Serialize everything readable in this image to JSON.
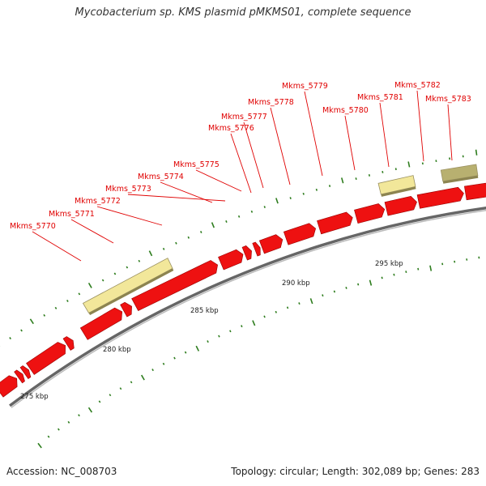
{
  "title": "Mycobacterium sp. KMS plasmid pMKMS01, complete sequence",
  "footer": {
    "accession": "Accession: NC_008703",
    "summary": "Topology: circular; Length: 302,089 bp; Genes: 283"
  },
  "colors": {
    "cds": "#ee1111",
    "cds_dark": "#990000",
    "feature_light": "#f2e79a",
    "feature_dark": "#b8b070",
    "label": "#e00000",
    "tick": "#2e7d1e",
    "backbone": "#888888"
  },
  "scale_labels": [
    {
      "kbp": 275,
      "text": "275 kbp"
    },
    {
      "kbp": 280,
      "text": "280 kbp"
    },
    {
      "kbp": 285,
      "text": "285 kbp"
    },
    {
      "kbp": 290,
      "text": "290 kbp"
    },
    {
      "kbp": 295,
      "text": "295 kbp"
    }
  ],
  "gene_labels": [
    {
      "text": "Mkms_5770"
    },
    {
      "text": "Mkms_5771"
    },
    {
      "text": "Mkms_5772"
    },
    {
      "text": "Mkms_5773"
    },
    {
      "text": "Mkms_5774"
    },
    {
      "text": "Mkms_5775"
    },
    {
      "text": "Mkms_5776"
    },
    {
      "text": "Mkms_5777"
    },
    {
      "text": "Mkms_5778"
    },
    {
      "text": "Mkms_5779"
    },
    {
      "text": "Mkms_5780"
    },
    {
      "text": "Mkms_5781"
    },
    {
      "text": "Mkms_5782"
    },
    {
      "text": "Mkms_5783"
    }
  ]
}
